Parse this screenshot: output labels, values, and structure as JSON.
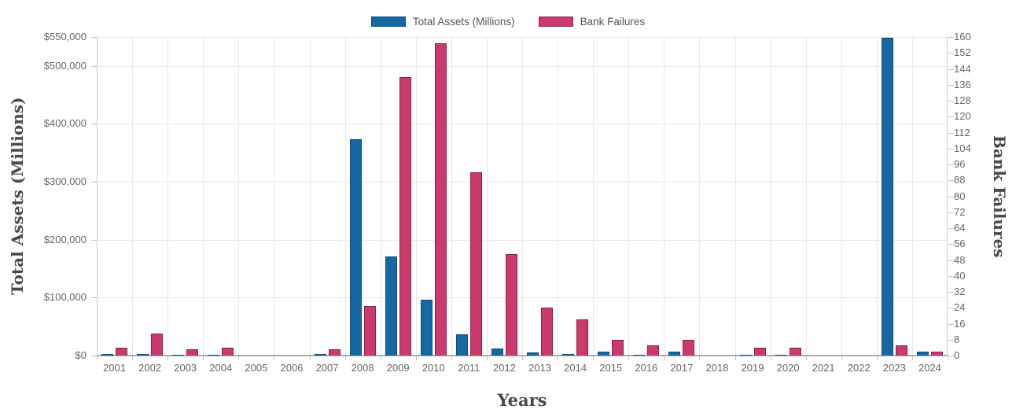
{
  "legend": {
    "items": [
      {
        "label": "Total Assets (Millions)",
        "color": "#1569a3",
        "border": "#0c4e7e"
      },
      {
        "label": "Bank Failures",
        "color": "#ca3a6d",
        "border": "#92204f"
      }
    ]
  },
  "axes": {
    "left_title": "Total Assets (Millions)",
    "right_title": "Bank Failures",
    "x_title": "Years"
  },
  "chart_data": {
    "type": "bar",
    "title": "",
    "xlabel": "Years",
    "ylabel_left": "Total Assets (Millions)",
    "ylabel_right": "Bank Failures",
    "legend_position": "top",
    "grid": true,
    "categories": [
      "2001",
      "2002",
      "2003",
      "2004",
      "2005",
      "2006",
      "2007",
      "2008",
      "2009",
      "2010",
      "2011",
      "2012",
      "2013",
      "2014",
      "2015",
      "2016",
      "2017",
      "2018",
      "2019",
      "2020",
      "2021",
      "2022",
      "2023",
      "2024"
    ],
    "series": [
      {
        "name": "Total Assets (Millions)",
        "axis": "left",
        "color": "#1569a3",
        "border_color": "#0c4e7e",
        "values": [
          2358,
          2872,
          1097,
          170,
          0,
          0,
          2615,
          373589,
          170867,
          96514,
          36012,
          11617,
          6044,
          3088,
          6727,
          277,
          6530,
          0,
          214,
          458,
          0,
          0,
          548705,
          6210
        ]
      },
      {
        "name": "Bank Failures",
        "axis": "right",
        "color": "#ca3a6d",
        "border_color": "#92204f",
        "values": [
          4,
          11,
          3,
          4,
          0,
          0,
          3,
          25,
          140,
          157,
          92,
          51,
          24,
          18,
          8,
          5,
          8,
          0,
          4,
          4,
          0,
          0,
          5,
          2
        ]
      }
    ],
    "left_axis": {
      "min": 0,
      "max": 550000,
      "ticks": [
        {
          "value": 0,
          "label": "$0"
        },
        {
          "value": 100000,
          "label": "$100,000"
        },
        {
          "value": 200000,
          "label": "$200,000"
        },
        {
          "value": 300000,
          "label": "$300,000"
        },
        {
          "value": 400000,
          "label": "$400,000"
        },
        {
          "value": 500000,
          "label": "$500,000"
        },
        {
          "value": 550000,
          "label": "$550,000"
        }
      ]
    },
    "right_axis": {
      "min": 0,
      "max": 160,
      "ticks": [
        "0",
        "8",
        "16",
        "24",
        "32",
        "40",
        "48",
        "56",
        "64",
        "72",
        "80",
        "88",
        "96",
        "104",
        "112",
        "120",
        "128",
        "136",
        "144",
        "152",
        "160"
      ]
    }
  },
  "colors": {
    "grid": "#e8e8e8",
    "axis_line": "#cccccc",
    "baseline": "#ababab",
    "tick_text": "#666666",
    "legend_text": "#555555",
    "title_text": "#4a4a4a"
  }
}
